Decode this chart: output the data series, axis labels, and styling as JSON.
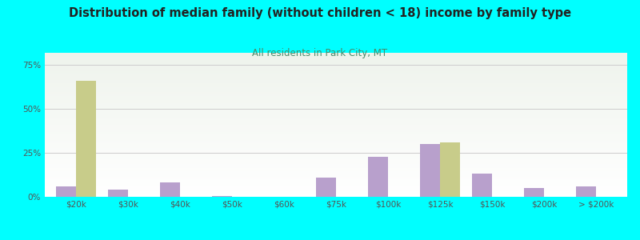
{
  "title": "Distribution of median family (without children < 18) income by family type",
  "subtitle": "All residents in Park City, MT",
  "categories": [
    "$20k",
    "$30k",
    "$40k",
    "$50k",
    "$60k",
    "$75k",
    "$100k",
    "$125k",
    "$150k",
    "$200k",
    "> $200k"
  ],
  "married_couple": [
    6,
    4,
    8,
    0.5,
    0,
    11,
    23,
    30,
    13,
    5,
    6
  ],
  "female_no_husband": [
    66,
    0,
    0,
    0,
    0,
    0,
    0,
    31,
    0,
    0,
    0
  ],
  "married_color": "#b8a0cc",
  "female_color": "#c8cc8a",
  "bg_color": "#00ffff",
  "plot_bg_top": "#eef3ec",
  "title_color": "#222222",
  "subtitle_color": "#4a8a6a",
  "yticks": [
    0,
    25,
    50,
    75
  ],
  "ylim": [
    0,
    82
  ],
  "bar_width": 0.38,
  "legend_text_color": "#333333"
}
